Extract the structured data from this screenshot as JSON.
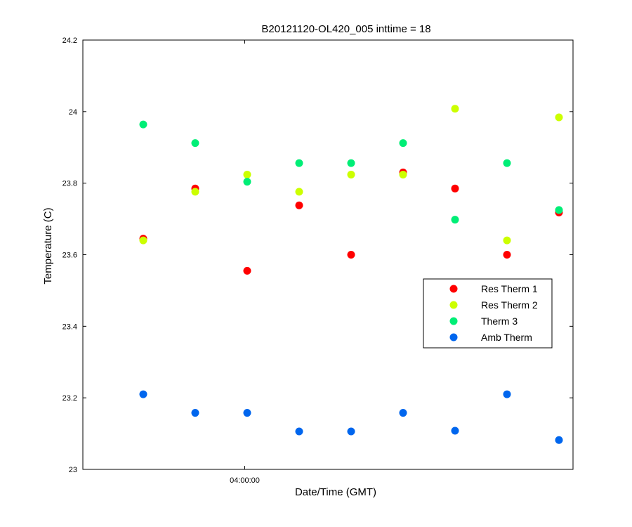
{
  "chart_data": {
    "type": "scatter",
    "title": "B20121120-OL420_005 inttime = 18",
    "xlabel": "Date/Time (GMT)",
    "ylabel": "Temperature (C)",
    "ylim": [
      23.0,
      24.2
    ],
    "yticks": [
      "23",
      "23.2",
      "23.4",
      "23.6",
      "23.8",
      "24",
      "24.2"
    ],
    "xticks": [
      {
        "index": 3,
        "label": "04:00:00"
      }
    ],
    "grid": false,
    "legend_position": "right",
    "series": [
      {
        "name": "Res Therm 1",
        "color": "#ff0000",
        "x": [
          1,
          2,
          3,
          4,
          5,
          6,
          7,
          8,
          9
        ],
        "values": [
          23.645,
          23.785,
          23.555,
          23.738,
          23.6,
          23.83,
          23.785,
          23.6,
          23.718
        ]
      },
      {
        "name": "Res Therm 2",
        "color": "#ccff00",
        "x": [
          1,
          2,
          3,
          4,
          5,
          6,
          7,
          8,
          9
        ],
        "values": [
          23.64,
          23.776,
          23.824,
          23.776,
          23.824,
          23.824,
          24.008,
          23.64,
          23.984
        ]
      },
      {
        "name": "Therm 3",
        "color": "#00ee76",
        "x": [
          1,
          2,
          3,
          4,
          5,
          6,
          7,
          8,
          9
        ],
        "values": [
          23.964,
          23.912,
          23.804,
          23.856,
          23.856,
          23.912,
          23.698,
          23.856,
          23.725
        ]
      },
      {
        "name": "Amb Therm",
        "color": "#0066ee",
        "x": [
          1,
          2,
          3,
          4,
          5,
          6,
          7,
          8,
          9
        ],
        "values": [
          23.21,
          23.158,
          23.158,
          23.106,
          23.106,
          23.158,
          23.108,
          23.21,
          23.082
        ]
      }
    ]
  }
}
